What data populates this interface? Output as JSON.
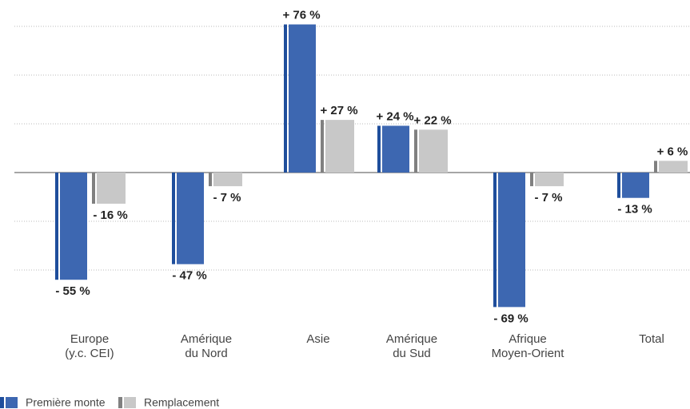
{
  "chart_data": {
    "type": "bar",
    "categories": [
      [
        "Europe",
        "(y.c. CEI)"
      ],
      [
        "Amérique",
        "du Nord"
      ],
      [
        "Asie"
      ],
      [
        "Amérique",
        "du Sud"
      ],
      [
        "Afrique",
        "Moyen-Orient"
      ],
      [
        "Total"
      ]
    ],
    "series": [
      {
        "name": "Première monte",
        "color": "#3d67b1",
        "values": [
          -55,
          -47,
          76,
          24,
          -69,
          -13
        ],
        "value_labels": [
          "- 55 %",
          "- 47 %",
          "+ 76 %",
          "+ 24 %",
          "- 69 %",
          "- 13 %"
        ]
      },
      {
        "name": "Remplacement",
        "color": "#c8c8c8",
        "values": [
          -16,
          -7,
          27,
          22,
          -7,
          6
        ],
        "value_labels": [
          "- 16 %",
          "- 7 %",
          "+ 27 %",
          "+ 22 %",
          "- 7 %",
          "+ 6 %"
        ]
      }
    ],
    "ylim": [
      -75,
      85
    ],
    "yticks": [
      -50,
      -25,
      0,
      25,
      50,
      75
    ],
    "grid": true
  }
}
